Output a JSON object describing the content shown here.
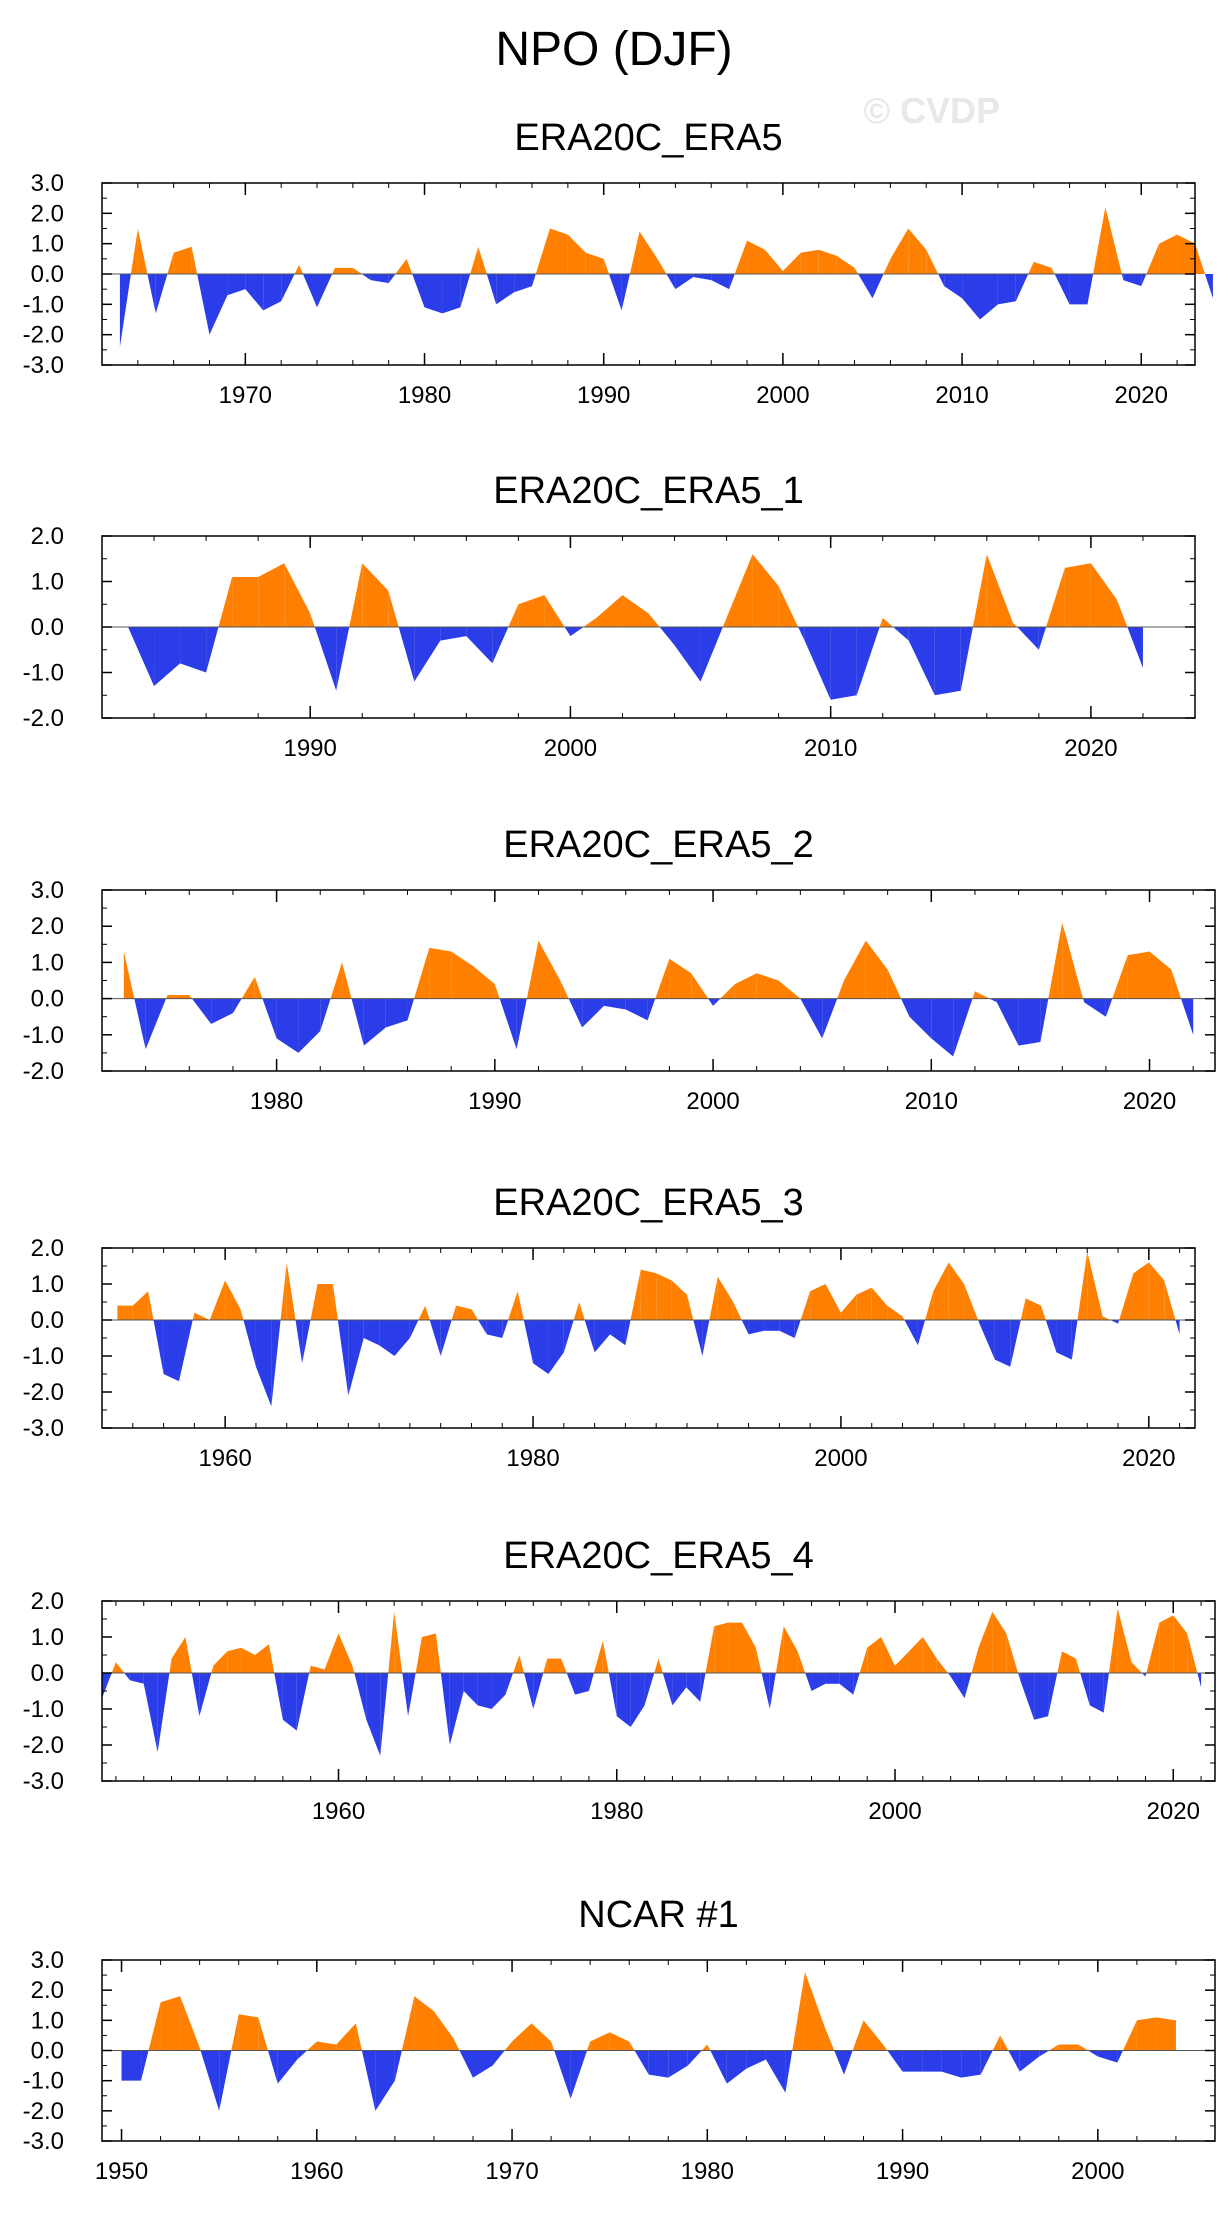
{
  "title": "NPO (DJF)",
  "watermark": "© CVDP",
  "colors": {
    "positive": "#ff8000",
    "negative": "#2a3de8",
    "axis": "#000000"
  },
  "chart_data": [
    {
      "type": "area",
      "title": "ERA20C_ERA5",
      "xlim": [
        1962,
        2023
      ],
      "ylim": [
        -3.0,
        3.0
      ],
      "yticks": [
        "3.0",
        "2.0",
        "1.0",
        "0.0",
        "-1.0",
        "-2.0",
        "-3.0"
      ],
      "xticks": [
        1970,
        1980,
        1990,
        2000,
        2010,
        2020
      ],
      "x_start": 1963,
      "values": [
        -2.4,
        1.5,
        -1.3,
        0.7,
        0.9,
        -2.0,
        -0.7,
        -0.5,
        -1.2,
        -0.9,
        0.3,
        -1.1,
        0.2,
        0.2,
        -0.2,
        -0.3,
        0.5,
        -1.1,
        -1.3,
        -1.1,
        0.9,
        -1.0,
        -0.6,
        -0.4,
        1.5,
        1.3,
        0.7,
        0.5,
        -1.2,
        1.4,
        0.5,
        -0.5,
        -0.1,
        -0.2,
        -0.5,
        1.1,
        0.8,
        0.1,
        0.7,
        0.8,
        0.6,
        0.2,
        -0.8,
        0.5,
        1.5,
        0.8,
        -0.4,
        -0.8,
        -1.5,
        -1.0,
        -0.9,
        0.4,
        0.2,
        -1.0,
        -1.0,
        2.2,
        -0.2,
        -0.4,
        1.0,
        1.3,
        1.0,
        -0.8
      ]
    },
    {
      "type": "area",
      "title": "ERA20C_ERA5_1",
      "xlim": [
        1982,
        2024
      ],
      "ylim": [
        -2.0,
        2.0
      ],
      "yticks": [
        "2.0",
        "1.0",
        "0.0",
        "-1.0",
        "-2.0"
      ],
      "xticks": [
        1990,
        2000,
        2010,
        2020
      ],
      "x_start": 1983,
      "values": [
        0.0,
        -1.3,
        -0.8,
        -1.0,
        1.1,
        1.1,
        1.4,
        0.3,
        -1.4,
        1.4,
        0.8,
        -1.2,
        -0.3,
        -0.2,
        -0.8,
        0.5,
        0.7,
        -0.2,
        0.2,
        0.7,
        0.3,
        -0.4,
        -1.2,
        0.2,
        1.6,
        0.9,
        -0.3,
        -1.6,
        -1.5,
        0.2,
        -0.3,
        -1.5,
        -1.4,
        1.6,
        0.1,
        -0.5,
        1.3,
        1.4,
        0.6,
        -0.9
      ]
    },
    {
      "type": "area",
      "title": "ERA20C_ERA5_2",
      "xlim": [
        1972,
        2023
      ],
      "ylim": [
        -2.0,
        3.0
      ],
      "yticks": [
        "3.0",
        "2.0",
        "1.0",
        "0.0",
        "-1.0",
        "-2.0"
      ],
      "xticks": [
        1980,
        1990,
        2000,
        2010,
        2020
      ],
      "x_start": 1973,
      "values": [
        1.3,
        -1.4,
        0.1,
        0.1,
        -0.7,
        -0.4,
        0.6,
        -1.1,
        -1.5,
        -0.9,
        1.0,
        -1.3,
        -0.8,
        -0.6,
        1.4,
        1.3,
        0.9,
        0.4,
        -1.4,
        1.6,
        0.5,
        -0.8,
        -0.2,
        -0.3,
        -0.6,
        1.1,
        0.7,
        -0.2,
        0.4,
        0.7,
        0.5,
        0.0,
        -1.1,
        0.5,
        1.6,
        0.8,
        -0.5,
        -1.1,
        -1.6,
        0.2,
        -0.1,
        -1.3,
        -1.2,
        2.1,
        -0.1,
        -0.5,
        1.2,
        1.3,
        0.8,
        -1.0
      ]
    },
    {
      "type": "area",
      "title": "ERA20C_ERA5_3",
      "xlim": [
        1952,
        2023
      ],
      "ylim": [
        -3.0,
        2.0
      ],
      "yticks": [
        "2.0",
        "1.0",
        "0.0",
        "-1.0",
        "-2.0",
        "-3.0"
      ],
      "xticks": [
        1960,
        1980,
        2000,
        2020
      ],
      "x_start": 1953,
      "values": [
        0.4,
        0.4,
        0.8,
        -1.5,
        -1.7,
        0.2,
        0.0,
        1.1,
        0.3,
        -1.3,
        -2.4,
        1.6,
        -1.2,
        1.0,
        1.0,
        -2.1,
        -0.5,
        -0.7,
        -1.0,
        -0.5,
        0.4,
        -1.0,
        0.4,
        0.3,
        -0.4,
        -0.5,
        0.8,
        -1.2,
        -1.5,
        -0.9,
        0.5,
        -0.9,
        -0.4,
        -0.7,
        1.4,
        1.3,
        1.1,
        0.7,
        -1.0,
        1.2,
        0.5,
        -0.4,
        -0.3,
        -0.3,
        -0.5,
        0.8,
        1.0,
        0.2,
        0.7,
        0.9,
        0.4,
        0.1,
        -0.7,
        0.8,
        1.6,
        1.0,
        -0.1,
        -1.1,
        -1.3,
        0.6,
        0.4,
        -0.9,
        -1.1,
        1.9,
        0.1,
        -0.1,
        1.3,
        1.6,
        1.1,
        -0.4
      ]
    },
    {
      "type": "area",
      "title": "ERA20C_ERA5_4",
      "xlim": [
        1943,
        2023
      ],
      "ylim": [
        -3.0,
        2.0
      ],
      "yticks": [
        "2.0",
        "1.0",
        "0.0",
        "-1.0",
        "-2.0",
        "-3.0"
      ],
      "xticks": [
        1960,
        1980,
        2000,
        2020
      ],
      "x_start": 1943,
      "values": [
        -0.7,
        0.3,
        -0.2,
        -0.3,
        -2.2,
        0.4,
        1.0,
        -1.2,
        0.2,
        0.6,
        0.7,
        0.5,
        0.8,
        -1.3,
        -1.6,
        0.2,
        0.1,
        1.1,
        0.2,
        -1.3,
        -2.3,
        1.7,
        -1.2,
        1.0,
        1.1,
        -2.0,
        -0.5,
        -0.9,
        -1.0,
        -0.6,
        0.5,
        -1.0,
        0.4,
        0.4,
        -0.6,
        -0.5,
        0.9,
        -1.2,
        -1.5,
        -0.9,
        0.4,
        -0.9,
        -0.4,
        -0.8,
        1.3,
        1.4,
        1.4,
        0.7,
        -1.0,
        1.3,
        0.6,
        -0.5,
        -0.3,
        -0.3,
        -0.6,
        0.7,
        1.0,
        0.2,
        0.6,
        1.0,
        0.4,
        -0.1,
        -0.7,
        0.7,
        1.7,
        1.1,
        -0.2,
        -1.3,
        -1.2,
        0.6,
        0.4,
        -0.9,
        -1.1,
        1.8,
        0.3,
        -0.1,
        1.4,
        1.6,
        1.1,
        -0.4
      ]
    },
    {
      "type": "area",
      "title": "NCAR #1",
      "xlim": [
        1949,
        2006
      ],
      "ylim": [
        -3.0,
        3.0
      ],
      "yticks": [
        "3.0",
        "2.0",
        "1.0",
        "0.0",
        "-1.0",
        "-2.0",
        "-3.0"
      ],
      "xticks": [
        1950,
        1960,
        1970,
        1980,
        1990,
        2000
      ],
      "x_start": 1950,
      "values": [
        -1.0,
        -1.0,
        1.6,
        1.8,
        0.1,
        -2.0,
        1.2,
        1.1,
        -1.1,
        -0.3,
        0.3,
        0.2,
        0.9,
        -2.0,
        -1.0,
        1.8,
        1.3,
        0.4,
        -0.9,
        -0.5,
        0.3,
        0.9,
        0.3,
        -1.6,
        0.3,
        0.6,
        0.3,
        -0.8,
        -0.9,
        -0.5,
        0.2,
        -1.1,
        -0.6,
        -0.3,
        -1.4,
        2.6,
        0.8,
        -0.8,
        1.0,
        0.2,
        -0.7,
        -0.7,
        -0.7,
        -0.9,
        -0.8,
        0.5,
        -0.7,
        -0.2,
        0.2,
        0.2,
        -0.2,
        -0.4,
        1.0,
        1.1,
        1.0
      ]
    }
  ]
}
